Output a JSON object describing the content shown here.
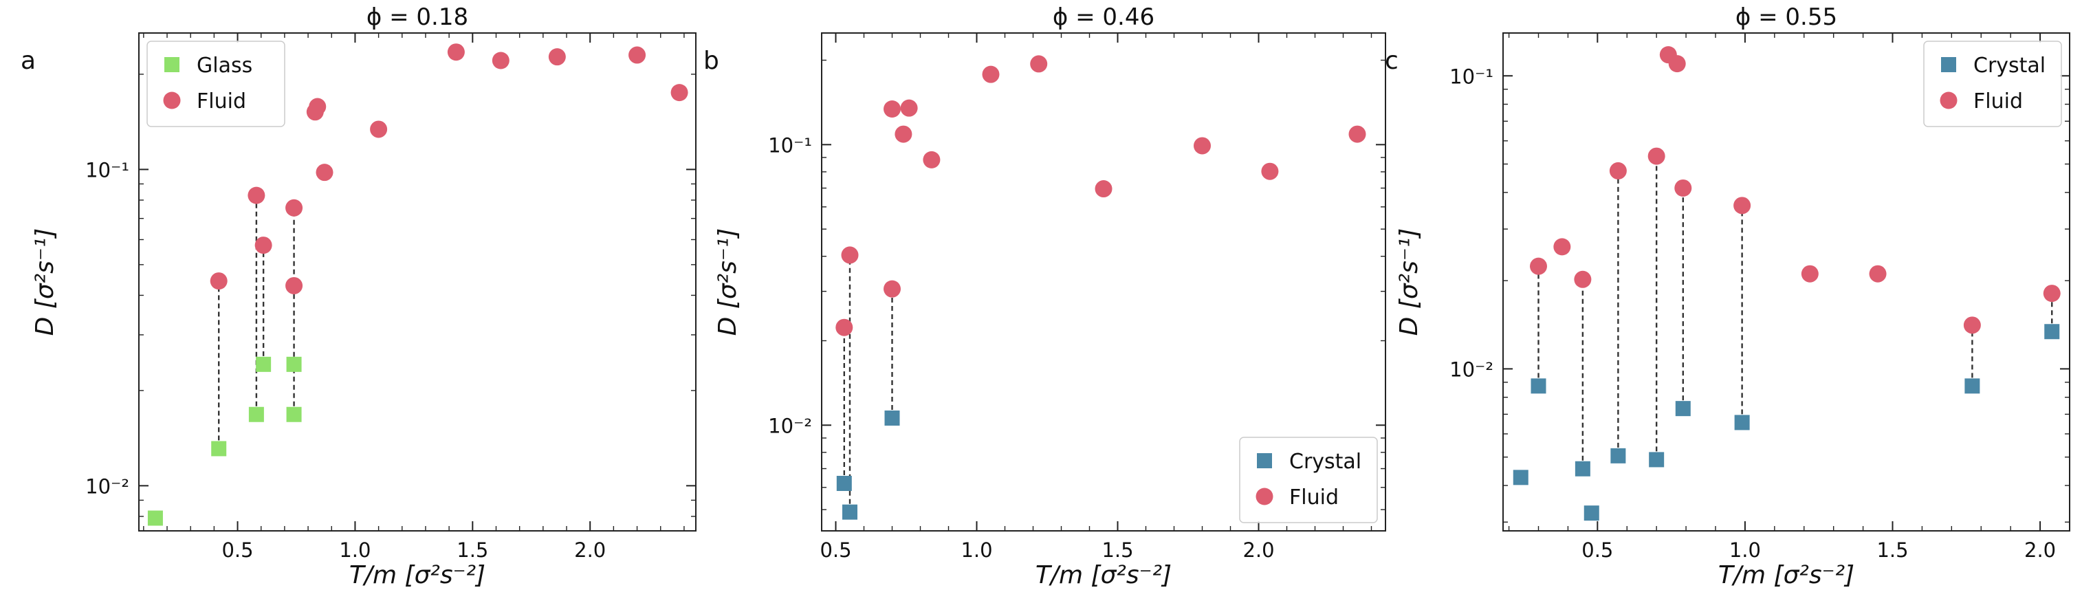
{
  "chart_data": [
    {
      "type": "scatter",
      "panel_label": "a",
      "title": "ϕ = 0.18",
      "xlabel": "T/m [σ²s⁻²]",
      "ylabel": "D [σ²s⁻¹]",
      "xscale": "linear",
      "yscale": "log",
      "xlim": [
        0.08,
        2.45
      ],
      "ylim": [
        0.0072,
        0.27
      ],
      "x_ticks": [
        0.5,
        1.0,
        1.5,
        2.0
      ],
      "x_tick_labels": [
        "0.5",
        "1.0",
        "1.5",
        "2.0"
      ],
      "y_ticks": [
        0.01,
        0.1
      ],
      "y_tick_labels": [
        "10⁻²",
        "10⁻¹"
      ],
      "legend_position": "top-left",
      "series": [
        {
          "name": "Glass",
          "marker": "square",
          "color": "#8fe06a",
          "x": [
            0.15,
            0.42,
            0.58,
            0.61,
            0.74,
            0.74
          ],
          "y": [
            0.0079,
            0.0131,
            0.0168,
            0.0242,
            0.0242,
            0.0168
          ]
        },
        {
          "name": "Fluid",
          "marker": "circle",
          "color": "#dd5c6f",
          "x": [
            0.42,
            0.58,
            0.61,
            0.74,
            0.74,
            0.83,
            0.84,
            0.87,
            1.1,
            1.43,
            1.62,
            1.86,
            2.2,
            2.38
          ],
          "y": [
            0.0444,
            0.0828,
            0.0576,
            0.0756,
            0.0429,
            0.152,
            0.158,
            0.0979,
            0.134,
            0.235,
            0.221,
            0.227,
            0.23,
            0.175
          ]
        }
      ],
      "connectors": [
        [
          0.42,
          0.0131,
          0.0444
        ],
        [
          0.58,
          0.0168,
          0.0828
        ],
        [
          0.61,
          0.0242,
          0.0576
        ],
        [
          0.74,
          0.0168,
          0.0756
        ]
      ]
    },
    {
      "type": "scatter",
      "panel_label": "b",
      "title": "ϕ = 0.46",
      "xlabel": "T/m [σ²s⁻²]",
      "ylabel": "D [σ²s⁻¹]",
      "xscale": "linear",
      "yscale": "log",
      "xlim": [
        0.45,
        2.45
      ],
      "ylim": [
        0.0042,
        0.25
      ],
      "x_ticks": [
        0.5,
        1.0,
        1.5,
        2.0
      ],
      "x_tick_labels": [
        "0.5",
        "1.0",
        "1.5",
        "2.0"
      ],
      "y_ticks": [
        0.01,
        0.1
      ],
      "y_tick_labels": [
        "10⁻²",
        "10⁻¹"
      ],
      "legend_position": "bottom-right",
      "series": [
        {
          "name": "Crystal",
          "marker": "square",
          "color": "#4a87a6",
          "x": [
            0.53,
            0.55,
            0.7
          ],
          "y": [
            0.0062,
            0.0049,
            0.0106
          ]
        },
        {
          "name": "Fluid",
          "marker": "circle",
          "color": "#dd5c6f",
          "x": [
            0.53,
            0.55,
            0.7,
            0.7,
            0.74,
            0.76,
            0.84,
            1.05,
            1.22,
            1.45,
            1.8,
            2.04,
            2.35
          ],
          "y": [
            0.0223,
            0.0404,
            0.0306,
            0.134,
            0.109,
            0.135,
            0.0883,
            0.178,
            0.194,
            0.0696,
            0.0991,
            0.0803,
            0.109
          ]
        }
      ],
      "connectors": [
        [
          0.53,
          0.0062,
          0.0223
        ],
        [
          0.55,
          0.0049,
          0.0404
        ],
        [
          0.7,
          0.0106,
          0.0306
        ]
      ]
    },
    {
      "type": "scatter",
      "panel_label": "c",
      "title": "ϕ = 0.55",
      "xlabel": "T/m [σ²s⁻²]",
      "ylabel": "D [σ²s⁻¹]",
      "xscale": "linear",
      "yscale": "log",
      "xlim": [
        0.18,
        2.1
      ],
      "ylim": [
        0.0028,
        0.14
      ],
      "x_ticks": [
        0.5,
        1.0,
        1.5,
        2.0
      ],
      "x_tick_labels": [
        "0.5",
        "1.0",
        "1.5",
        "2.0"
      ],
      "y_ticks": [
        0.01,
        0.1
      ],
      "y_tick_labels": [
        "10⁻²",
        "10⁻¹"
      ],
      "legend_position": "top-right",
      "series": [
        {
          "name": "Crystal",
          "marker": "square",
          "color": "#4a87a6",
          "x": [
            0.24,
            0.3,
            0.45,
            0.48,
            0.57,
            0.7,
            0.79,
            0.99,
            1.77,
            2.04
          ],
          "y": [
            0.00426,
            0.00874,
            0.00456,
            0.00322,
            0.00505,
            0.0049,
            0.00732,
            0.00656,
            0.00874,
            0.0134
          ]
        },
        {
          "name": "Fluid",
          "marker": "circle",
          "color": "#dd5c6f",
          "x": [
            0.3,
            0.38,
            0.45,
            0.57,
            0.7,
            0.74,
            0.77,
            0.79,
            0.99,
            1.22,
            1.45,
            1.77,
            2.04
          ],
          "y": [
            0.0224,
            0.0261,
            0.0202,
            0.0474,
            0.0532,
            0.118,
            0.11,
            0.0414,
            0.0361,
            0.0211,
            0.0211,
            0.0141,
            0.0181
          ]
        }
      ],
      "connectors": [
        [
          0.3,
          0.00874,
          0.0224
        ],
        [
          0.45,
          0.00456,
          0.0202
        ],
        [
          0.57,
          0.00505,
          0.0474
        ],
        [
          0.7,
          0.0049,
          0.0532
        ],
        [
          0.79,
          0.00732,
          0.0414
        ],
        [
          0.99,
          0.00656,
          0.0361
        ],
        [
          1.77,
          0.00874,
          0.0141
        ],
        [
          2.04,
          0.0134,
          0.0181
        ]
      ]
    }
  ]
}
